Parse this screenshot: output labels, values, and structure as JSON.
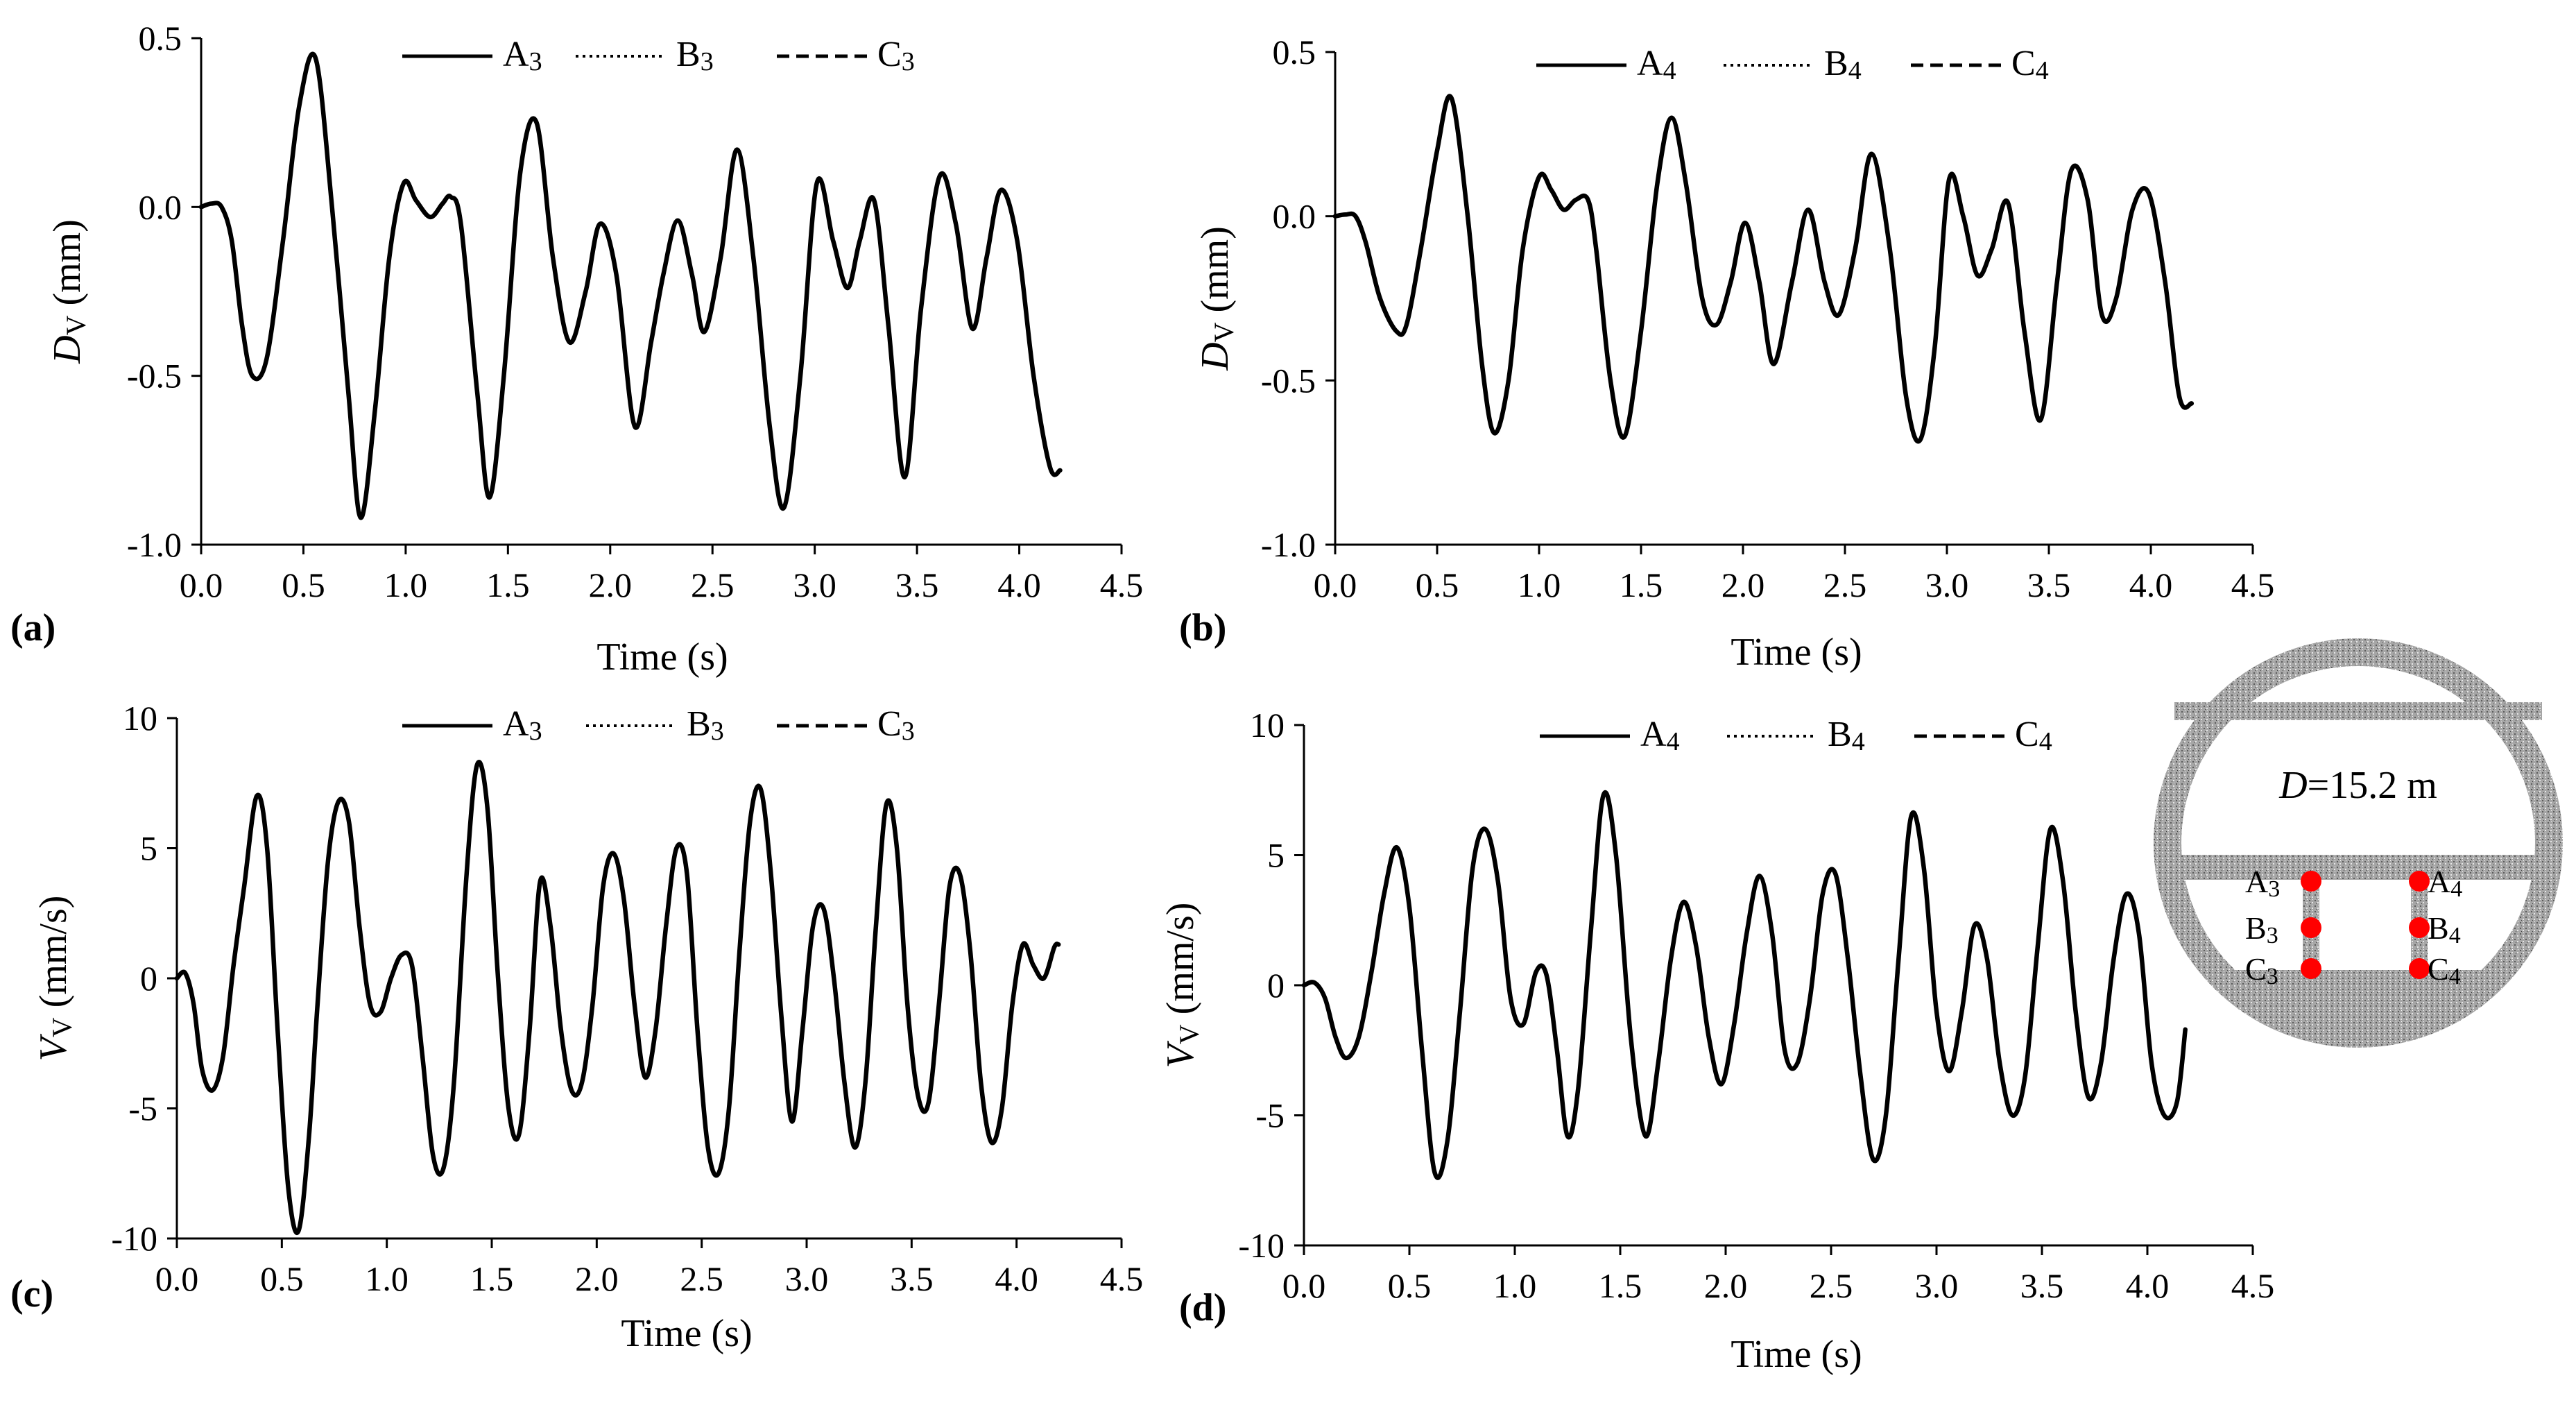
{
  "chart_data": [
    {
      "panel": "(a)",
      "type": "line",
      "xlabel": "Time (s)",
      "ylabel_main": "D",
      "ylabel_sub": "V",
      "ylabel_unit": " (mm)",
      "xlim": [
        0,
        4.5
      ],
      "ylim": [
        -1.0,
        0.5
      ],
      "xticks": [
        "0.0",
        "0.5",
        "1.0",
        "1.5",
        "2.0",
        "2.5",
        "3.0",
        "3.5",
        "4.0",
        "4.5"
      ],
      "yticks": [
        "-1.0",
        "-0.5",
        "0.0",
        "0.5"
      ],
      "ytick_values": [
        -1.0,
        -0.5,
        0.0,
        0.5
      ],
      "legend": [
        {
          "main": "A",
          "sub": "3",
          "style": "solid"
        },
        {
          "main": "B",
          "sub": "3",
          "style": "dotted"
        },
        {
          "main": "C",
          "sub": "3",
          "style": "dashed"
        }
      ],
      "series": [
        {
          "x": [
            0,
            0.05,
            0.1,
            0.15,
            0.2,
            0.25,
            0.32,
            0.4,
            0.48,
            0.56,
            0.64,
            0.72,
            0.78,
            0.85,
            0.92,
            0.99,
            1.05,
            1.12,
            1.18,
            1.22,
            1.27,
            1.35,
            1.41,
            1.48,
            1.56,
            1.64,
            1.72,
            1.8,
            1.88,
            1.95,
            2.03,
            2.12,
            2.2,
            2.26,
            2.33,
            2.4,
            2.46,
            2.54,
            2.62,
            2.7,
            2.78,
            2.85,
            2.93,
            3.01,
            3.09,
            3.16,
            3.22,
            3.29,
            3.36,
            3.44,
            3.52,
            3.61,
            3.69,
            3.77,
            3.84,
            3.91,
            3.99,
            4.07,
            4.15,
            4.2
          ],
          "values": [
            0,
            0.01,
            0.0,
            -0.1,
            -0.35,
            -0.5,
            -0.45,
            -0.1,
            0.3,
            0.44,
            0.0,
            -0.55,
            -0.92,
            -0.6,
            -0.15,
            0.07,
            0.02,
            -0.03,
            0.01,
            0.03,
            -0.05,
            -0.55,
            -0.86,
            -0.5,
            0.1,
            0.25,
            -0.15,
            -0.4,
            -0.25,
            -0.05,
            -0.2,
            -0.65,
            -0.4,
            -0.2,
            -0.04,
            -0.2,
            -0.37,
            -0.15,
            0.17,
            -0.15,
            -0.65,
            -0.89,
            -0.5,
            0.07,
            -0.1,
            -0.24,
            -0.1,
            0.02,
            -0.35,
            -0.8,
            -0.3,
            0.09,
            -0.05,
            -0.36,
            -0.15,
            0.05,
            -0.1,
            -0.5,
            -0.77,
            -0.78
          ]
        }
      ]
    },
    {
      "panel": "(b)",
      "type": "line",
      "xlabel": "Time (s)",
      "ylabel_main": "D",
      "ylabel_sub": "V",
      "ylabel_unit": " (mm)",
      "xlim": [
        0,
        4.5
      ],
      "ylim": [
        -1.0,
        0.5
      ],
      "xticks": [
        "0.0",
        "0.5",
        "1.0",
        "1.5",
        "2.0",
        "2.5",
        "3.0",
        "3.5",
        "4.0",
        "4.5"
      ],
      "yticks": [
        "-1.0",
        "-0.5",
        "0.0",
        "0.5"
      ],
      "ytick_values": [
        -1.0,
        -0.5,
        0.0,
        0.5
      ],
      "legend": [
        {
          "main": "A",
          "sub": "4",
          "style": "solid"
        },
        {
          "main": "B",
          "sub": "4",
          "style": "dotted"
        },
        {
          "main": "C",
          "sub": "4",
          "style": "dashed"
        }
      ],
      "series": [
        {
          "x": [
            0,
            0.05,
            0.1,
            0.15,
            0.22,
            0.3,
            0.35,
            0.42,
            0.5,
            0.57,
            0.65,
            0.72,
            0.78,
            0.85,
            0.92,
            1.0,
            1.06,
            1.12,
            1.18,
            1.24,
            1.28,
            1.35,
            1.42,
            1.5,
            1.58,
            1.65,
            1.72,
            1.8,
            1.87,
            1.94,
            2.01,
            2.08,
            2.15,
            2.24,
            2.32,
            2.4,
            2.47,
            2.55,
            2.63,
            2.72,
            2.8,
            2.87,
            2.94,
            3.01,
            3.08,
            3.15,
            3.22,
            3.3,
            3.38,
            3.46,
            3.54,
            3.61,
            3.69,
            3.76,
            3.83,
            3.91,
            3.99,
            4.07,
            4.14,
            4.2
          ],
          "values": [
            0,
            0.005,
            0.0,
            -0.08,
            -0.25,
            -0.35,
            -0.33,
            -0.1,
            0.2,
            0.36,
            0.0,
            -0.45,
            -0.66,
            -0.5,
            -0.1,
            0.12,
            0.08,
            0.02,
            0.05,
            0.05,
            -0.1,
            -0.5,
            -0.67,
            -0.35,
            0.1,
            0.3,
            0.1,
            -0.25,
            -0.33,
            -0.2,
            -0.02,
            -0.2,
            -0.45,
            -0.2,
            0.02,
            -0.2,
            -0.3,
            -0.1,
            0.19,
            -0.1,
            -0.55,
            -0.68,
            -0.4,
            0.11,
            0.0,
            -0.18,
            -0.1,
            0.04,
            -0.35,
            -0.62,
            -0.2,
            0.14,
            0.05,
            -0.3,
            -0.25,
            0.02,
            0.07,
            -0.2,
            -0.55,
            -0.57
          ]
        }
      ]
    },
    {
      "panel": "(c)",
      "type": "line",
      "xlabel": "Time (s)",
      "ylabel_main": "V",
      "ylabel_sub": "V",
      "ylabel_unit": " (mm/s)",
      "xlim": [
        0,
        4.5
      ],
      "ylim": [
        -10,
        10
      ],
      "xticks": [
        "0.0",
        "0.5",
        "1.0",
        "1.5",
        "2.0",
        "2.5",
        "3.0",
        "3.5",
        "4.0",
        "4.5"
      ],
      "yticks": [
        "-10",
        "-5",
        "0",
        "5",
        "10"
      ],
      "ytick_values": [
        -10,
        -5,
        0,
        5,
        10
      ],
      "legend": [
        {
          "main": "A",
          "sub": "3",
          "style": "solid"
        },
        {
          "main": "B",
          "sub": "3",
          "style": "dotted"
        },
        {
          "main": "C",
          "sub": "3",
          "style": "dashed"
        }
      ],
      "series": [
        {
          "x": [
            0,
            0.04,
            0.08,
            0.12,
            0.17,
            0.22,
            0.27,
            0.32,
            0.38,
            0.43,
            0.48,
            0.53,
            0.58,
            0.63,
            0.67,
            0.72,
            0.77,
            0.82,
            0.87,
            0.92,
            0.97,
            1.02,
            1.07,
            1.12,
            1.17,
            1.22,
            1.27,
            1.32,
            1.38,
            1.43,
            1.48,
            1.53,
            1.58,
            1.63,
            1.68,
            1.73,
            1.78,
            1.83,
            1.88,
            1.93,
            1.98,
            2.03,
            2.08,
            2.13,
            2.18,
            2.23,
            2.28,
            2.33,
            2.38,
            2.43,
            2.48,
            2.53,
            2.58,
            2.63,
            2.68,
            2.73,
            2.78,
            2.83,
            2.88,
            2.93,
            2.98,
            3.03,
            3.08,
            3.13,
            3.18,
            3.23,
            3.28,
            3.33,
            3.38,
            3.43,
            3.48,
            3.53,
            3.58,
            3.63,
            3.68,
            3.73,
            3.78,
            3.83,
            3.88,
            3.93,
            3.98,
            4.03,
            4.08,
            4.13,
            4.18,
            4.2
          ],
          "values": [
            0,
            0.2,
            -1.0,
            -3.5,
            -4.3,
            -3.0,
            0.5,
            3.5,
            7.0,
            5.0,
            -2.0,
            -8.0,
            -9.7,
            -6.0,
            -1.0,
            4.5,
            6.8,
            6.0,
            2.0,
            -1.0,
            -1.3,
            0.0,
            0.9,
            0.5,
            -3.0,
            -6.8,
            -7.3,
            -4.0,
            4.0,
            8.2,
            6.5,
            0.0,
            -5.0,
            -6.0,
            -2.0,
            3.7,
            2.0,
            -2.0,
            -4.3,
            -4.0,
            -1.0,
            3.5,
            4.8,
            3.0,
            -1.0,
            -3.8,
            -2.0,
            2.0,
            5.0,
            4.0,
            -2.0,
            -6.5,
            -7.5,
            -5.0,
            1.0,
            6.0,
            7.3,
            4.0,
            -1.5,
            -5.5,
            -2.0,
            2.0,
            2.7,
            0.0,
            -4.0,
            -6.5,
            -4.0,
            2.0,
            6.7,
            5.0,
            -1.0,
            -4.5,
            -4.8,
            -1.0,
            3.5,
            4.0,
            1.0,
            -4.0,
            -6.3,
            -5.0,
            -1.0,
            1.3,
            0.5,
            0.0,
            1.2,
            1.3
          ]
        }
      ]
    },
    {
      "panel": "(d)",
      "type": "line",
      "xlabel": "Time (s)",
      "ylabel_main": "V",
      "ylabel_sub": "V",
      "ylabel_unit": " (mm/s)",
      "xlim": [
        0,
        4.5
      ],
      "ylim": [
        -10,
        10
      ],
      "xticks": [
        "0.0",
        "0.5",
        "1.0",
        "1.5",
        "2.0",
        "2.5",
        "3.0",
        "3.5",
        "4.0",
        "4.5"
      ],
      "yticks": [
        "-10",
        "-5",
        "0",
        "5",
        "10"
      ],
      "ytick_values": [
        -10,
        -5,
        0,
        5,
        10
      ],
      "legend": [
        {
          "main": "A",
          "sub": "4",
          "style": "solid"
        },
        {
          "main": "B",
          "sub": "4",
          "style": "dotted"
        },
        {
          "main": "C",
          "sub": "4",
          "style": "dashed"
        }
      ],
      "series": [
        {
          "x": [
            0,
            0.05,
            0.1,
            0.15,
            0.2,
            0.26,
            0.32,
            0.38,
            0.44,
            0.5,
            0.56,
            0.62,
            0.68,
            0.74,
            0.8,
            0.86,
            0.92,
            0.98,
            1.04,
            1.1,
            1.15,
            1.2,
            1.25,
            1.3,
            1.36,
            1.42,
            1.48,
            1.55,
            1.62,
            1.68,
            1.74,
            1.8,
            1.86,
            1.92,
            1.98,
            2.04,
            2.1,
            2.16,
            2.22,
            2.28,
            2.34,
            2.4,
            2.46,
            2.52,
            2.58,
            2.64,
            2.7,
            2.76,
            2.82,
            2.88,
            2.94,
            3.0,
            3.06,
            3.12,
            3.18,
            3.24,
            3.3,
            3.36,
            3.42,
            3.48,
            3.54,
            3.6,
            3.66,
            3.72,
            3.78,
            3.84,
            3.9,
            3.96,
            4.02,
            4.08,
            4.14,
            4.18
          ],
          "values": [
            0,
            0.1,
            -0.5,
            -2.0,
            -2.8,
            -2.0,
            0.5,
            3.5,
            5.3,
            3.0,
            -2.5,
            -7.2,
            -6.0,
            -1.0,
            4.5,
            6.0,
            4.0,
            -0.5,
            -1.5,
            0.5,
            0.4,
            -2.5,
            -5.8,
            -4.0,
            2.0,
            7.3,
            5.0,
            -2.0,
            -5.8,
            -3.0,
            1.0,
            3.2,
            1.5,
            -2.0,
            -3.8,
            -1.5,
            2.0,
            4.2,
            2.0,
            -2.5,
            -3.0,
            -0.5,
            3.5,
            4.3,
            1.0,
            -3.5,
            -6.7,
            -5.0,
            1.0,
            6.5,
            4.5,
            -1.0,
            -3.3,
            -1.0,
            2.3,
            1.0,
            -3.0,
            -5.0,
            -3.5,
            1.5,
            6.0,
            4.0,
            -1.0,
            -4.3,
            -3.0,
            1.0,
            3.5,
            2.0,
            -3.0,
            -5.0,
            -4.5,
            -1.7
          ]
        }
      ]
    }
  ],
  "inset": {
    "diameter_label_main": "D",
    "diameter_label_rest": "=15.2 m",
    "points": [
      {
        "main": "A",
        "sub": "3"
      },
      {
        "main": "B",
        "sub": "3"
      },
      {
        "main": "C",
        "sub": "3"
      },
      {
        "main": "A",
        "sub": "4"
      },
      {
        "main": "B",
        "sub": "4"
      },
      {
        "main": "C",
        "sub": "4"
      }
    ],
    "point_color": "#ff0000",
    "concrete_color": "#9a9a9a"
  }
}
